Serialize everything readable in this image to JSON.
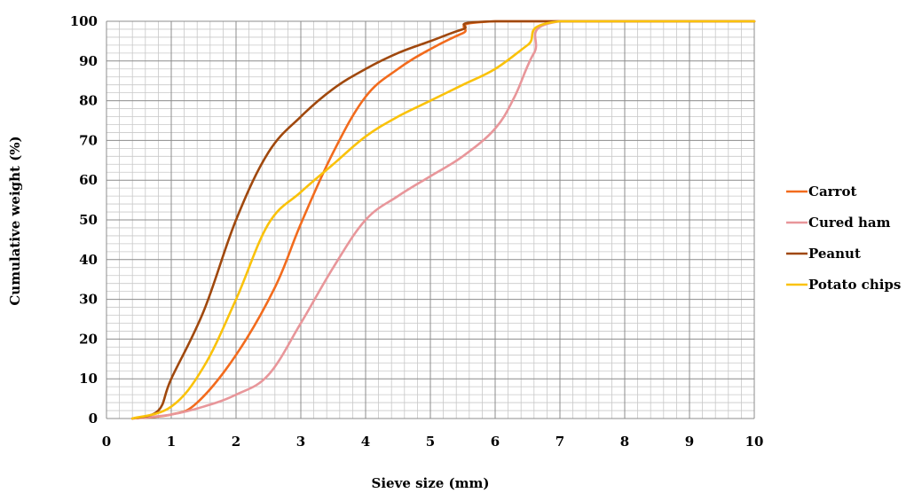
{
  "chart_data": {
    "type": "line",
    "xlabel": "Sieve size (mm)",
    "ylabel": "Cumulative weight (%)",
    "xlim": [
      0,
      10
    ],
    "ylim": [
      0,
      100
    ],
    "x_ticks": [
      "0",
      "1",
      "2",
      "3",
      "4",
      "5",
      "6",
      "7",
      "8",
      "9",
      "10"
    ],
    "y_ticks": [
      "0",
      "10",
      "20",
      "30",
      "40",
      "50",
      "60",
      "70",
      "80",
      "90",
      "100"
    ],
    "major_step_x": 1,
    "minor_step_x": 0.2,
    "major_step_y": 10,
    "minor_step_y": 2,
    "grid": true,
    "legend_position": "right",
    "series": [
      {
        "name": "Carrot",
        "color": "#F26B1D",
        "points": [
          [
            0.4,
            0
          ],
          [
            1.0,
            1
          ],
          [
            1.4,
            4
          ],
          [
            2.0,
            16
          ],
          [
            2.6,
            33
          ],
          [
            3.0,
            49
          ],
          [
            3.5,
            67
          ],
          [
            4.0,
            81
          ],
          [
            4.5,
            88
          ],
          [
            5.0,
            93
          ],
          [
            5.5,
            97
          ],
          [
            6.0,
            100
          ],
          [
            10.0,
            100
          ]
        ]
      },
      {
        "name": "Cured ham",
        "color": "#E8969A",
        "points": [
          [
            0.4,
            0
          ],
          [
            1.0,
            1
          ],
          [
            1.5,
            3
          ],
          [
            2.0,
            6
          ],
          [
            2.5,
            11
          ],
          [
            3.0,
            24
          ],
          [
            3.5,
            38
          ],
          [
            4.0,
            50
          ],
          [
            4.5,
            56
          ],
          [
            5.0,
            61
          ],
          [
            5.5,
            66
          ],
          [
            6.0,
            73
          ],
          [
            6.3,
            81
          ],
          [
            6.6,
            92
          ],
          [
            7.0,
            100
          ],
          [
            10.0,
            100
          ]
        ]
      },
      {
        "name": "Peanut",
        "color": "#A0480D",
        "points": [
          [
            0.4,
            0
          ],
          [
            0.8,
            2
          ],
          [
            1.0,
            10
          ],
          [
            1.5,
            27
          ],
          [
            2.0,
            50
          ],
          [
            2.5,
            67
          ],
          [
            3.0,
            76
          ],
          [
            3.5,
            83
          ],
          [
            4.0,
            88
          ],
          [
            4.5,
            92
          ],
          [
            5.0,
            95
          ],
          [
            5.5,
            98
          ],
          [
            6.0,
            100
          ],
          [
            10.0,
            100
          ]
        ]
      },
      {
        "name": "Potato chips",
        "color": "#FAC20A",
        "points": [
          [
            0.4,
            0
          ],
          [
            1.0,
            3
          ],
          [
            1.5,
            13
          ],
          [
            2.0,
            30
          ],
          [
            2.5,
            49
          ],
          [
            3.0,
            57
          ],
          [
            3.5,
            64
          ],
          [
            4.0,
            71
          ],
          [
            4.5,
            76
          ],
          [
            5.0,
            80
          ],
          [
            5.5,
            84
          ],
          [
            6.0,
            88
          ],
          [
            6.5,
            94
          ],
          [
            7.0,
            100
          ],
          [
            10.0,
            100
          ]
        ]
      }
    ]
  }
}
